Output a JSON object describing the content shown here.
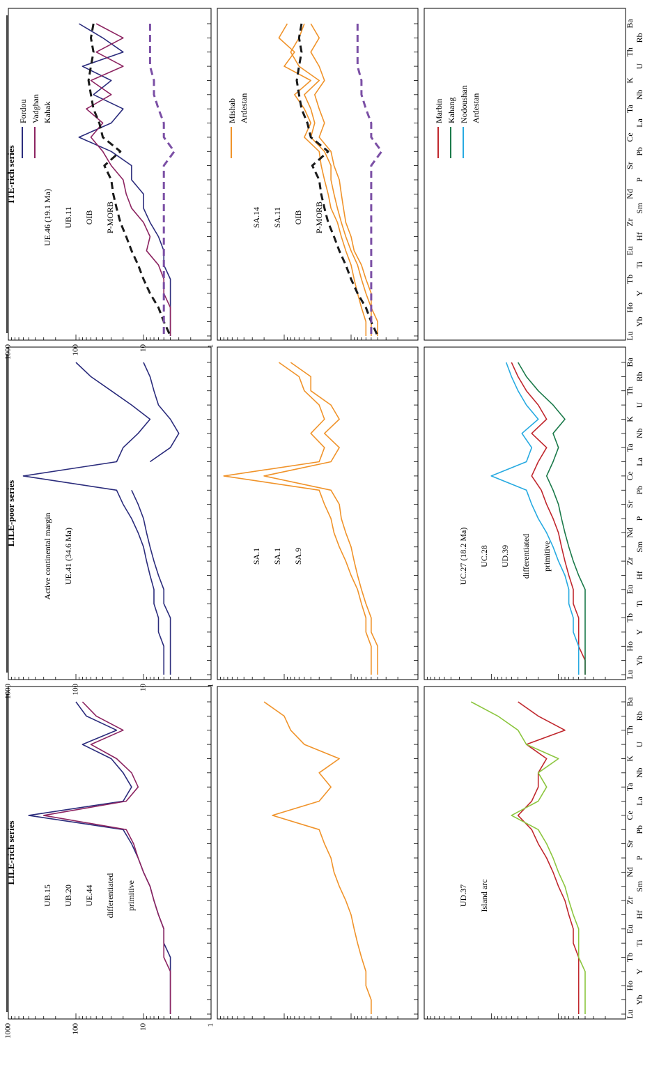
{
  "figure": {
    "series_titles": [
      "ITE-rich series",
      "LILE-poor series",
      "LILE-rich series"
    ],
    "y_ticks": [
      "1000",
      "100",
      "10",
      "1"
    ],
    "elements_top": [
      "Ba",
      "Th",
      "K",
      "Ta",
      "Ce",
      "Sr",
      "Nd",
      "Zr",
      "Eu",
      "Tb",
      "Ho",
      "Lu"
    ],
    "elements_bottom": [
      "Rb",
      "U",
      "Nb",
      "La",
      "Pb",
      "P",
      "Sm",
      "Hf",
      "Ti",
      "Y",
      "Yb"
    ]
  },
  "colors": {
    "fordou": "#2b2c7c",
    "vadghan": "#8c2461",
    "mishab": "#f0932a",
    "marbin": "#c0272d",
    "kahang": "#1b7a4a",
    "nodoushan_blue": "#27aae1",
    "nodoushan_green": "#8cc63f",
    "pink": "#e07aa8",
    "salmon": "#f08080",
    "grey": "#bfbfbf",
    "oib": "#1a1a1a",
    "pmorb": "#7b4fa5"
  },
  "chart_data": [
    {
      "type": "line",
      "panel": "ITE-rich / Kahak",
      "legend": {
        "entries": [
          "Fordou",
          "Vadghan"
        ],
        "group": "Kahak"
      },
      "ylim": [
        1,
        1000
      ],
      "log": true,
      "annotations": [
        "UE.46 (19.1 Ma)",
        "UB.11",
        "OIB",
        "P-MORB"
      ],
      "series": [
        {
          "name": "Fordou",
          "values": [
            90,
            40,
            20,
            80,
            30,
            55,
            20,
            30,
            90,
            30,
            15,
            15,
            10,
            10,
            8,
            6,
            5,
            5,
            4,
            4,
            4,
            4,
            4
          ]
        },
        {
          "name": "Vadghan",
          "values": [
            50,
            20,
            50,
            20,
            60,
            30,
            70,
            40,
            60,
            40,
            30,
            20,
            18,
            15,
            10,
            8,
            9,
            6,
            5,
            5,
            4,
            4,
            4
          ]
        },
        {
          "name": "OIB",
          "values": [
            55,
            60,
            55,
            60,
            65,
            60,
            55,
            45,
            40,
            22,
            38,
            30,
            28,
            25,
            22,
            18,
            15,
            12,
            10,
            8,
            6,
            5,
            4
          ]
        },
        {
          "name": "P-MORB",
          "values": [
            8,
            8,
            8,
            8,
            7,
            7,
            6,
            5,
            5,
            3.5,
            5,
            5,
            5,
            5,
            5,
            5,
            5,
            5,
            5,
            5,
            5,
            5,
            5
          ]
        }
      ]
    },
    {
      "type": "line",
      "panel": "ITE-rich / Ardestan",
      "legend": {
        "entries": [
          "Mishab"
        ],
        "group": "Ardestan"
      },
      "ylim": [
        1,
        1000
      ],
      "log": true,
      "annotations": [
        "SA.14",
        "SA.11",
        "OIB",
        "P-MORB"
      ],
      "series": [
        {
          "name": "Mishab",
          "values": [
            90,
            120,
            70,
            100,
            40,
            70,
            50,
            40,
            50,
            30,
            28,
            25,
            22,
            20,
            16,
            14,
            12,
            10,
            9,
            8,
            7,
            6,
            6
          ]
        },
        {
          "name": "Mishab",
          "values": [
            50,
            60,
            80,
            60,
            30,
            50,
            40,
            35,
            40,
            25,
            20,
            20,
            18,
            16,
            14,
            12,
            10,
            8,
            7,
            6,
            5,
            5,
            5
          ]
        },
        {
          "name": "Mishab",
          "values": [
            40,
            30,
            40,
            30,
            25,
            35,
            30,
            25,
            30,
            20,
            18,
            15,
            14,
            13,
            12,
            10,
            9,
            7,
            6,
            5,
            5,
            4,
            4
          ]
        },
        {
          "name": "OIB",
          "values": [
            55,
            60,
            55,
            60,
            65,
            60,
            55,
            45,
            40,
            22,
            38,
            30,
            28,
            25,
            22,
            18,
            15,
            12,
            10,
            8,
            6,
            5,
            4
          ]
        },
        {
          "name": "P-MORB",
          "values": [
            8,
            8,
            8,
            8,
            7,
            7,
            6,
            5,
            5,
            3.5,
            5,
            5,
            5,
            5,
            5,
            5,
            5,
            5,
            5,
            5,
            5,
            5,
            5
          ]
        }
      ]
    },
    {
      "type": "line",
      "panel": "Ardestan legend",
      "legend": {
        "entries": [
          "Marbin",
          "Kahang",
          "Nodoushan"
        ],
        "group": "Ardestan"
      }
    },
    {
      "type": "line",
      "panel": "LILE-poor / Kahak",
      "ylim": [
        1,
        1000
      ],
      "log": true,
      "annotations": [
        "Active continental margin",
        "UE.41 (34.6 Ma)"
      ],
      "series": [
        {
          "name": "Fordou",
          "values": [
            100,
            60,
            30,
            15,
            8,
            12,
            20,
            25,
            600,
            25,
            20,
            15,
            12,
            10,
            9,
            8,
            7,
            7,
            6,
            6,
            5,
            5,
            5
          ]
        },
        {
          "name": "Fordou",
          "values": [
            10,
            8,
            7,
            6,
            4,
            3,
            4,
            8,
            null,
            15,
            12,
            10,
            9,
            8,
            7,
            6,
            5,
            5,
            4,
            4,
            4,
            4,
            4
          ]
        }
      ]
    },
    {
      "type": "line",
      "panel": "LILE-poor / Ardestan",
      "ylim": [
        1,
        1000
      ],
      "log": true,
      "annotations": [
        "SA.1",
        "SA.1",
        "SA.9"
      ],
      "series": [
        {
          "name": "Mishab",
          "values": [
            120,
            60,
            50,
            30,
            25,
            40,
            25,
            30,
            800,
            30,
            25,
            20,
            18,
            15,
            12,
            10,
            8,
            7,
            6,
            6,
            5,
            5,
            5
          ]
        },
        {
          "name": "Mishab",
          "values": [
            80,
            40,
            40,
            20,
            15,
            25,
            15,
            20,
            200,
            20,
            15,
            14,
            12,
            10,
            9,
            8,
            7,
            6,
            5,
            5,
            4,
            4,
            4
          ]
        }
      ]
    },
    {
      "type": "line",
      "panel": "LILE-poor / Ardestan (Marbin, Kahang, Nodoushan)",
      "ylim": [
        1,
        1000
      ],
      "log": true,
      "annotations": [
        "UC.27 (18.2 Ma)",
        "UC.28",
        "UD.39",
        "differentiated",
        "primitive"
      ],
      "series": [
        {
          "name": "Marbin",
          "values": [
            50,
            40,
            30,
            20,
            15,
            25,
            15,
            20,
            25,
            18,
            15,
            12,
            10,
            9,
            8,
            7,
            6,
            6,
            5,
            5,
            5,
            4,
            4
          ]
        },
        {
          "name": "Kahang",
          "values": [
            40,
            30,
            20,
            12,
            8,
            12,
            10,
            12,
            15,
            12,
            10,
            9,
            8,
            7,
            6,
            5,
            4,
            4,
            4,
            4,
            4,
            4,
            4
          ]
        },
        {
          "name": "Nodoushan",
          "values": [
            60,
            50,
            40,
            30,
            20,
            35,
            25,
            30,
            100,
            30,
            25,
            20,
            15,
            12,
            10,
            8,
            7,
            7,
            6,
            6,
            5,
            5,
            5
          ]
        }
      ]
    },
    {
      "type": "line",
      "panel": "LILE-rich / Kahak",
      "ylim": [
        1,
        1000
      ],
      "log": true,
      "annotations": [
        "UB.15",
        "UB.20",
        "UE.44",
        "differentiated",
        "primitive"
      ],
      "series": [
        {
          "name": "Fordou",
          "values": [
            100,
            70,
            25,
            80,
            30,
            20,
            15,
            20,
            500,
            20,
            15,
            12,
            10,
            8,
            7,
            6,
            5,
            5,
            4,
            4,
            4,
            4,
            4
          ]
        },
        {
          "name": "Vadghan",
          "values": [
            80,
            50,
            20,
            60,
            25,
            15,
            12,
            18,
            300,
            18,
            14,
            12,
            10,
            8,
            7,
            6,
            5,
            5,
            5,
            4,
            4,
            4,
            4
          ]
        }
      ]
    },
    {
      "type": "line",
      "panel": "LILE-rich / Ardestan",
      "ylim": [
        1,
        1000
      ],
      "log": true,
      "series": [
        {
          "name": "Mishab",
          "values": [
            200,
            100,
            80,
            50,
            15,
            30,
            20,
            30,
            150,
            30,
            25,
            20,
            18,
            15,
            12,
            10,
            9,
            8,
            7,
            6,
            6,
            5,
            5
          ]
        }
      ]
    },
    {
      "type": "line",
      "panel": "LILE-rich / Ardestan (Marbin, Kahang, Nodoushan)",
      "ylim": [
        1,
        1000
      ],
      "log": true,
      "annotations": [
        "UD.37",
        "Island arc"
      ],
      "series": [
        {
          "name": "Marbin",
          "values": [
            40,
            20,
            8,
            30,
            15,
            20,
            20,
            25,
            40,
            25,
            20,
            15,
            12,
            10,
            8,
            7,
            6,
            6,
            5,
            5,
            5,
            5,
            5
          ]
        },
        {
          "name": "Nodoushan",
          "values": [
            200,
            80,
            40,
            30,
            10,
            20,
            15,
            20,
            50,
            20,
            15,
            12,
            10,
            8,
            7,
            6,
            5,
            5,
            5,
            4,
            4,
            4,
            4
          ]
        }
      ]
    }
  ]
}
